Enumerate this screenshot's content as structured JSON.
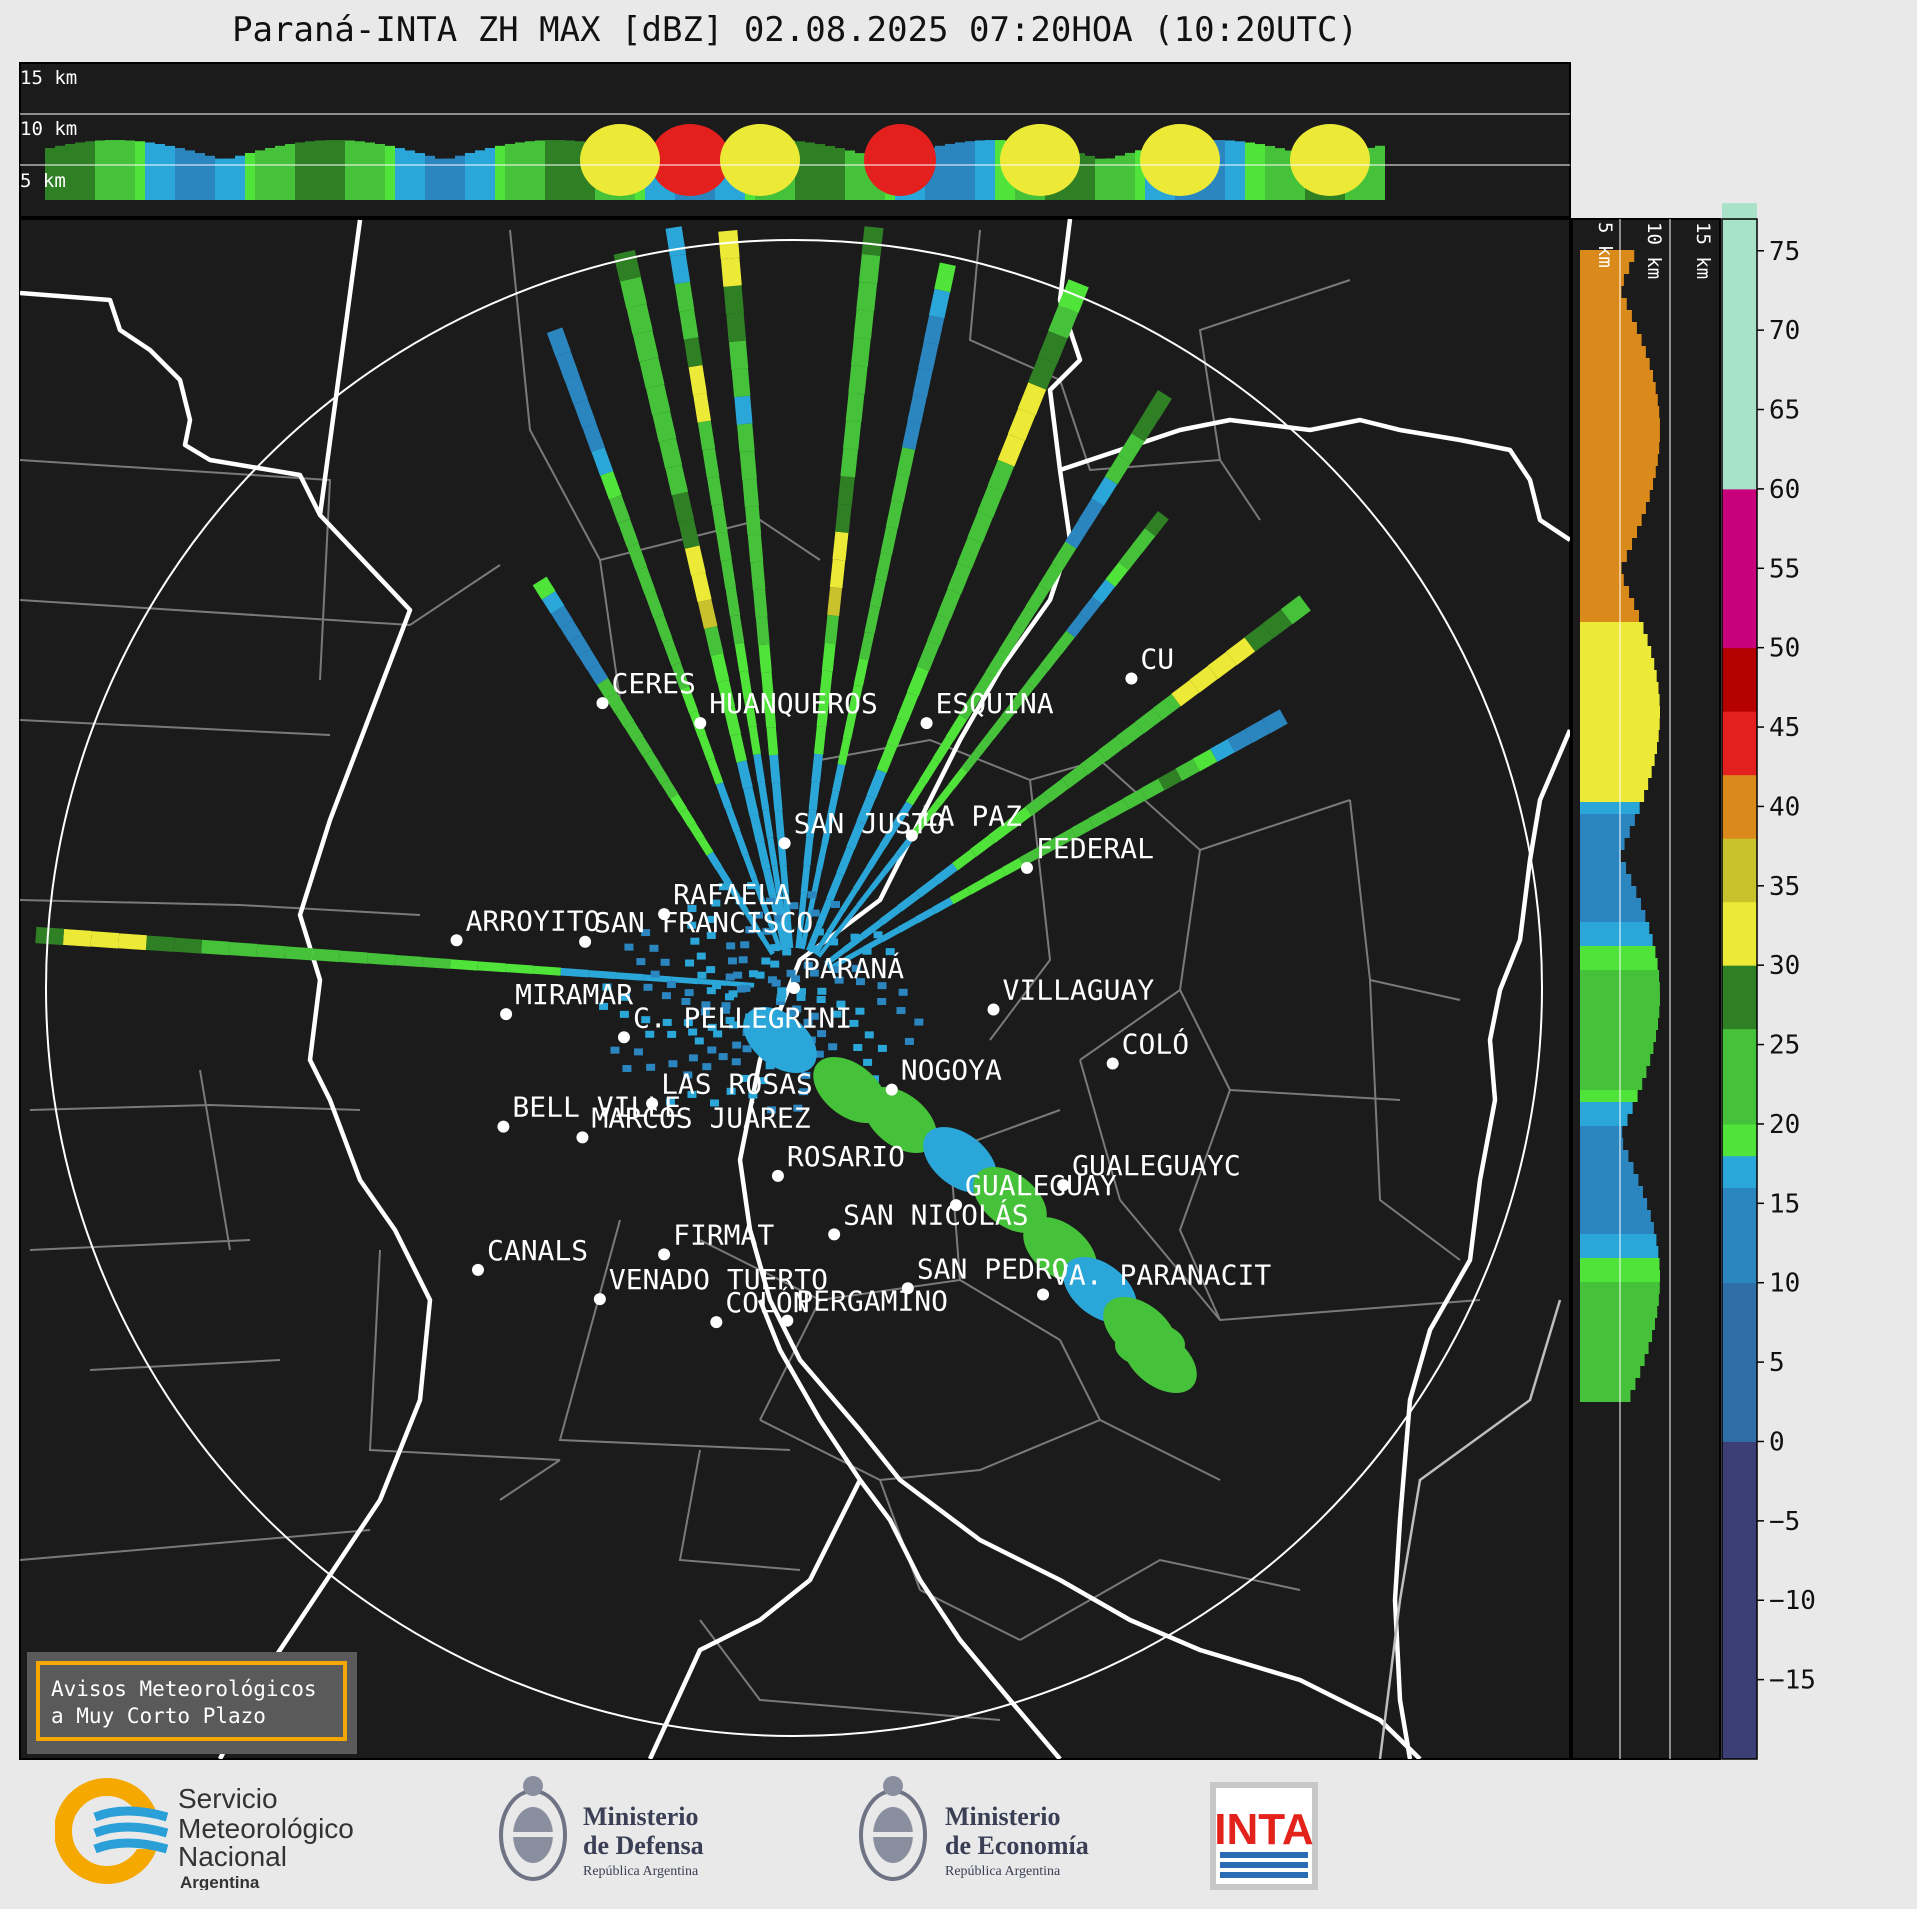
{
  "title": "Paraná-INTA ZH MAX [dBZ] 02.08.2025 07:20HOA (10:20UTC)",
  "top_panel": {
    "height_labels": [
      "15 km",
      "10 km",
      "5 km"
    ]
  },
  "side_panel": {
    "height_labels": [
      "5 km",
      "10 km",
      "15 km"
    ]
  },
  "colorbar": {
    "ticks": [
      "75",
      "70",
      "65",
      "60",
      "55",
      "50",
      "45",
      "40",
      "35",
      "30",
      "25",
      "20",
      "15",
      "10",
      "5",
      "0",
      "−5",
      "−10",
      "−15"
    ],
    "tick_values": [
      75,
      70,
      65,
      60,
      55,
      50,
      45,
      40,
      35,
      30,
      25,
      20,
      15,
      10,
      5,
      0,
      -5,
      -10,
      -15
    ],
    "range": [
      -20,
      77
    ]
  },
  "cities": [
    {
      "name": "CERES",
      "lon": -61.95,
      "lat": -29.88
    },
    {
      "name": "HUANQUEROS",
      "lon": -61.22,
      "lat": -30.01
    },
    {
      "name": "ESQUINA",
      "lon": -59.53,
      "lat": -30.01
    },
    {
      "name": "MIRAMAR",
      "lon": -62.67,
      "lat": -31.9
    },
    {
      "name": "SAN JUSTO",
      "lon": -60.59,
      "lat": -30.79
    },
    {
      "name": "LA PAZ",
      "lon": -59.64,
      "lat": -30.74
    },
    {
      "name": "FEDERAL",
      "lon": -58.78,
      "lat": -30.95
    },
    {
      "name": "RAFAELA",
      "lon": -61.49,
      "lat": -31.25
    },
    {
      "name": "ARROYITO",
      "lon": -63.04,
      "lat": -31.42
    },
    {
      "name": "SAN FRANCISCO",
      "lon": -62.08,
      "lat": -31.43
    },
    {
      "name": "PARANÁ",
      "lon": -60.52,
      "lat": -31.73
    },
    {
      "name": "VILLAGUAY",
      "lon": -59.03,
      "lat": -31.87
    },
    {
      "name": "C. PELLEGRINI",
      "lon": -61.79,
      "lat": -32.05
    },
    {
      "name": "COLÓ",
      "lon": -58.14,
      "lat": -32.22
    },
    {
      "name": "NOGOYA",
      "lon": -59.79,
      "lat": -32.39
    },
    {
      "name": "LAS ROSAS",
      "lon": -61.58,
      "lat": -32.48
    },
    {
      "name": "BELL VILLE",
      "lon": -62.69,
      "lat": -32.63
    },
    {
      "name": "MARCOS JUÁREZ",
      "lon": -62.1,
      "lat": -32.7
    },
    {
      "name": "ROSARIO",
      "lon": -60.64,
      "lat": -32.95
    },
    {
      "name": "GUALEGUAYC",
      "lon": -58.51,
      "lat": -33.01
    },
    {
      "name": "GUALEGUAY",
      "lon": -59.31,
      "lat": -33.14
    },
    {
      "name": "SAN NICOLÁS",
      "lon": -60.22,
      "lat": -33.33
    },
    {
      "name": "FIRMAT",
      "lon": -61.49,
      "lat": -33.46
    },
    {
      "name": "CANALS",
      "lon": -62.88,
      "lat": -33.56
    },
    {
      "name": "SAN PEDRO",
      "lon": -59.67,
      "lat": -33.68
    },
    {
      "name": "VA. PARANACIT",
      "lon": -58.66,
      "lat": -33.72
    },
    {
      "name": "VENADO TUERTO",
      "lon": -61.97,
      "lat": -33.75
    },
    {
      "name": "COLÓN",
      "lon": -61.1,
      "lat": -33.9
    },
    {
      "name": "PERGAMINO",
      "lon": -60.57,
      "lat": -33.89
    },
    {
      "name": "CU",
      "lon": -58.0,
      "lat": -29.72
    }
  ],
  "inset_box": {
    "line1": "Avisos Meteorológicos",
    "line2": "a Muy Corto Plazo"
  },
  "logos": {
    "smn": {
      "line1": "Servicio",
      "line2": "Meteorológico",
      "line3": "Nacional",
      "line4": "Argentina"
    },
    "defensa": {
      "line1": "Ministerio",
      "line2": "de Defensa",
      "line3": "República Argentina"
    },
    "economia": {
      "line1": "Ministerio",
      "line2": "de Economía",
      "line3": "República Argentina"
    },
    "inta": {
      "text": "INTA"
    }
  },
  "colors": {
    "background": "#1b1b1b",
    "accent_orange": "#f5a800",
    "smn_blue": "#2a9fd8",
    "inta_red": "#e3221b"
  }
}
